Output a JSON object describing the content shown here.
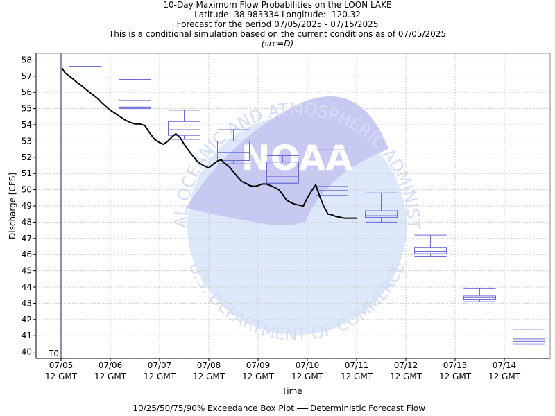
{
  "titles": {
    "line1": "10-Day Maximum Flow Probabilities on the LOON LAKE",
    "line2": "Latitude: 38.983334 Longitude: -120.32",
    "line3": "Forecast for the period 07/05/2025 - 07/15/2025",
    "line4": "This is a conditional simulation based on the current conditions as of 07/05/2025",
    "line5": "(src=D)"
  },
  "watermark": {
    "arc_top": "NATIONAL OCEANIC AND ATMOSPHERIC ADMINISTRATION",
    "arc_bottom": "U.S. DEPARTMENT OF COMMERCE",
    "center": "NOAA"
  },
  "colors": {
    "box": "#6a6ad8",
    "forecast_line": "#000000",
    "t0_line": "#20205a",
    "grid": "#cccccc",
    "watermark_light": "#dde8fb",
    "watermark_dark": "#c7c9f3"
  },
  "chart_data": {
    "type": "box",
    "xlabel": "Time",
    "ylabel": "Discharge [CFS]",
    "ylim": [
      39.6,
      58.4
    ],
    "y_ticks": [
      40,
      41,
      42,
      43,
      44,
      45,
      46,
      47,
      48,
      49,
      50,
      51,
      52,
      53,
      54,
      55,
      56,
      57,
      58
    ],
    "x_ticks": [
      {
        "line1": "07/05",
        "line2": "12 GMT",
        "day": 0
      },
      {
        "line1": "07/06",
        "line2": "12 GMT",
        "day": 1
      },
      {
        "line1": "07/07",
        "line2": "12 GMT",
        "day": 2
      },
      {
        "line1": "07/08",
        "line2": "12 GMT",
        "day": 3
      },
      {
        "line1": "07/09",
        "line2": "12 GMT",
        "day": 4
      },
      {
        "line1": "07/10",
        "line2": "12 GMT",
        "day": 5
      },
      {
        "line1": "07/11",
        "line2": "12 GMT",
        "day": 6
      },
      {
        "line1": "07/12",
        "line2": "12 GMT",
        "day": 7
      },
      {
        "line1": "07/13",
        "line2": "12 GMT",
        "day": 8
      },
      {
        "line1": "07/14",
        "line2": "12 GMT",
        "day": 9
      }
    ],
    "x_range_days": [
      -0.5,
      10.0
    ],
    "t0_label": "T0",
    "t0_day": 0,
    "boxes": [
      {
        "day": 0.5,
        "p10": 57.6,
        "p25": 57.6,
        "p50": 57.6,
        "p75": 57.6,
        "p90": 57.6
      },
      {
        "day": 1.5,
        "p10": 55.0,
        "p25": 55.05,
        "p50": 55.1,
        "p75": 55.5,
        "p90": 56.8
      },
      {
        "day": 2.5,
        "p10": 53.1,
        "p25": 53.35,
        "p50": 53.7,
        "p75": 54.2,
        "p90": 54.9
      },
      {
        "day": 3.5,
        "p10": 51.6,
        "p25": 51.8,
        "p50": 52.3,
        "p75": 53.0,
        "p90": 53.7
      },
      {
        "day": 4.5,
        "p10": 50.4,
        "p25": 50.4,
        "p50": 50.8,
        "p75": 51.7,
        "p90": 52.1
      },
      {
        "day": 5.5,
        "p10": 49.65,
        "p25": 49.95,
        "p50": 50.2,
        "p75": 50.6,
        "p90": 52.45
      },
      {
        "day": 6.5,
        "p10": 48.0,
        "p25": 48.3,
        "p50": 48.4,
        "p75": 48.7,
        "p90": 49.8
      },
      {
        "day": 7.5,
        "p10": 45.9,
        "p25": 46.05,
        "p50": 46.2,
        "p75": 46.45,
        "p90": 47.2
      },
      {
        "day": 8.5,
        "p10": 43.1,
        "p25": 43.25,
        "p50": 43.35,
        "p75": 43.45,
        "p90": 43.9
      },
      {
        "day": 9.5,
        "p10": 40.45,
        "p25": 40.55,
        "p50": 40.65,
        "p75": 40.8,
        "p90": 41.4
      }
    ],
    "series": [
      {
        "name": "Deterministic Forecast Flow",
        "x": [
          0.02,
          0.08,
          0.17,
          0.25,
          0.33,
          0.42,
          0.5,
          0.58,
          0.67,
          0.75,
          0.83,
          0.92,
          1.0,
          1.1,
          1.2,
          1.3,
          1.4,
          1.5,
          1.6,
          1.7,
          1.8,
          1.9,
          2.0,
          2.08,
          2.17,
          2.25,
          2.33,
          2.42,
          2.5,
          2.58,
          2.67,
          2.75,
          2.83,
          2.92,
          3.0,
          3.08,
          3.17,
          3.25,
          3.33,
          3.42,
          3.5,
          3.58,
          3.67,
          3.75,
          3.83,
          3.92,
          4.0,
          4.08,
          4.17,
          4.25,
          4.33,
          4.42,
          4.5,
          4.58,
          4.67,
          4.75,
          4.83,
          4.92,
          5.0,
          5.08,
          5.17,
          5.25,
          5.33,
          5.42,
          5.5,
          5.58,
          5.67,
          5.75,
          5.83,
          5.92,
          6.0
        ],
        "y": [
          57.5,
          57.2,
          57.0,
          56.8,
          56.6,
          56.4,
          56.2,
          56.0,
          55.8,
          55.6,
          55.35,
          55.1,
          54.9,
          54.7,
          54.5,
          54.3,
          54.15,
          54.05,
          54.05,
          53.95,
          53.5,
          53.1,
          52.9,
          52.8,
          53.0,
          53.25,
          53.45,
          53.2,
          52.8,
          52.45,
          52.1,
          51.8,
          51.6,
          51.45,
          51.35,
          51.55,
          51.75,
          51.85,
          51.6,
          51.4,
          51.1,
          50.8,
          50.5,
          50.4,
          50.25,
          50.2,
          50.25,
          50.35,
          50.35,
          50.25,
          50.15,
          50.0,
          49.7,
          49.35,
          49.2,
          49.1,
          49.05,
          49.0,
          49.5,
          49.9,
          50.3,
          49.6,
          49.0,
          48.5,
          48.45,
          48.35,
          48.3,
          48.25,
          48.25,
          48.25,
          48.25
        ]
      }
    ],
    "legend": {
      "box_label": "10/25/50/75/90% Exceedance Box Plot",
      "line_label": "Deterministic Forecast Flow",
      "position": "bottom"
    },
    "grid": true
  }
}
